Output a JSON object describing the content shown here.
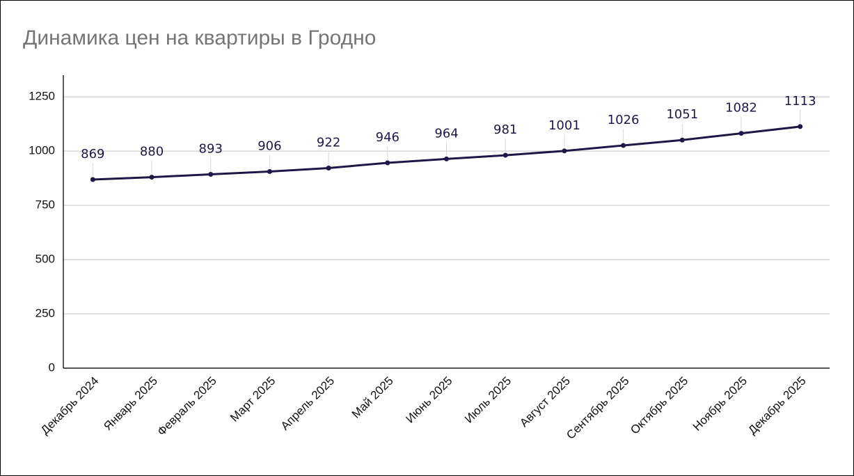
{
  "chart_data": {
    "type": "line",
    "title": "Динамика цен на квартиры в Гродно",
    "categories": [
      "Декабрь 2024",
      "Январь 2025",
      "Февраль 2025",
      "Март 2025",
      "Апрель 2025",
      "Май 2025",
      "Июнь 2025",
      "Июль 2025",
      "Август 2025",
      "Сентябрь 2025",
      "Октябрь 2025",
      "Ноябрь 2025",
      "Декабрь 2025"
    ],
    "values": [
      869,
      880,
      893,
      906,
      922,
      946,
      964,
      981,
      1001,
      1026,
      1051,
      1082,
      1113
    ],
    "color": "#1e1846",
    "ylim": [
      0,
      1350
    ],
    "yticks": [
      0,
      250,
      500,
      750,
      1000,
      1250
    ],
    "grid": true
  }
}
